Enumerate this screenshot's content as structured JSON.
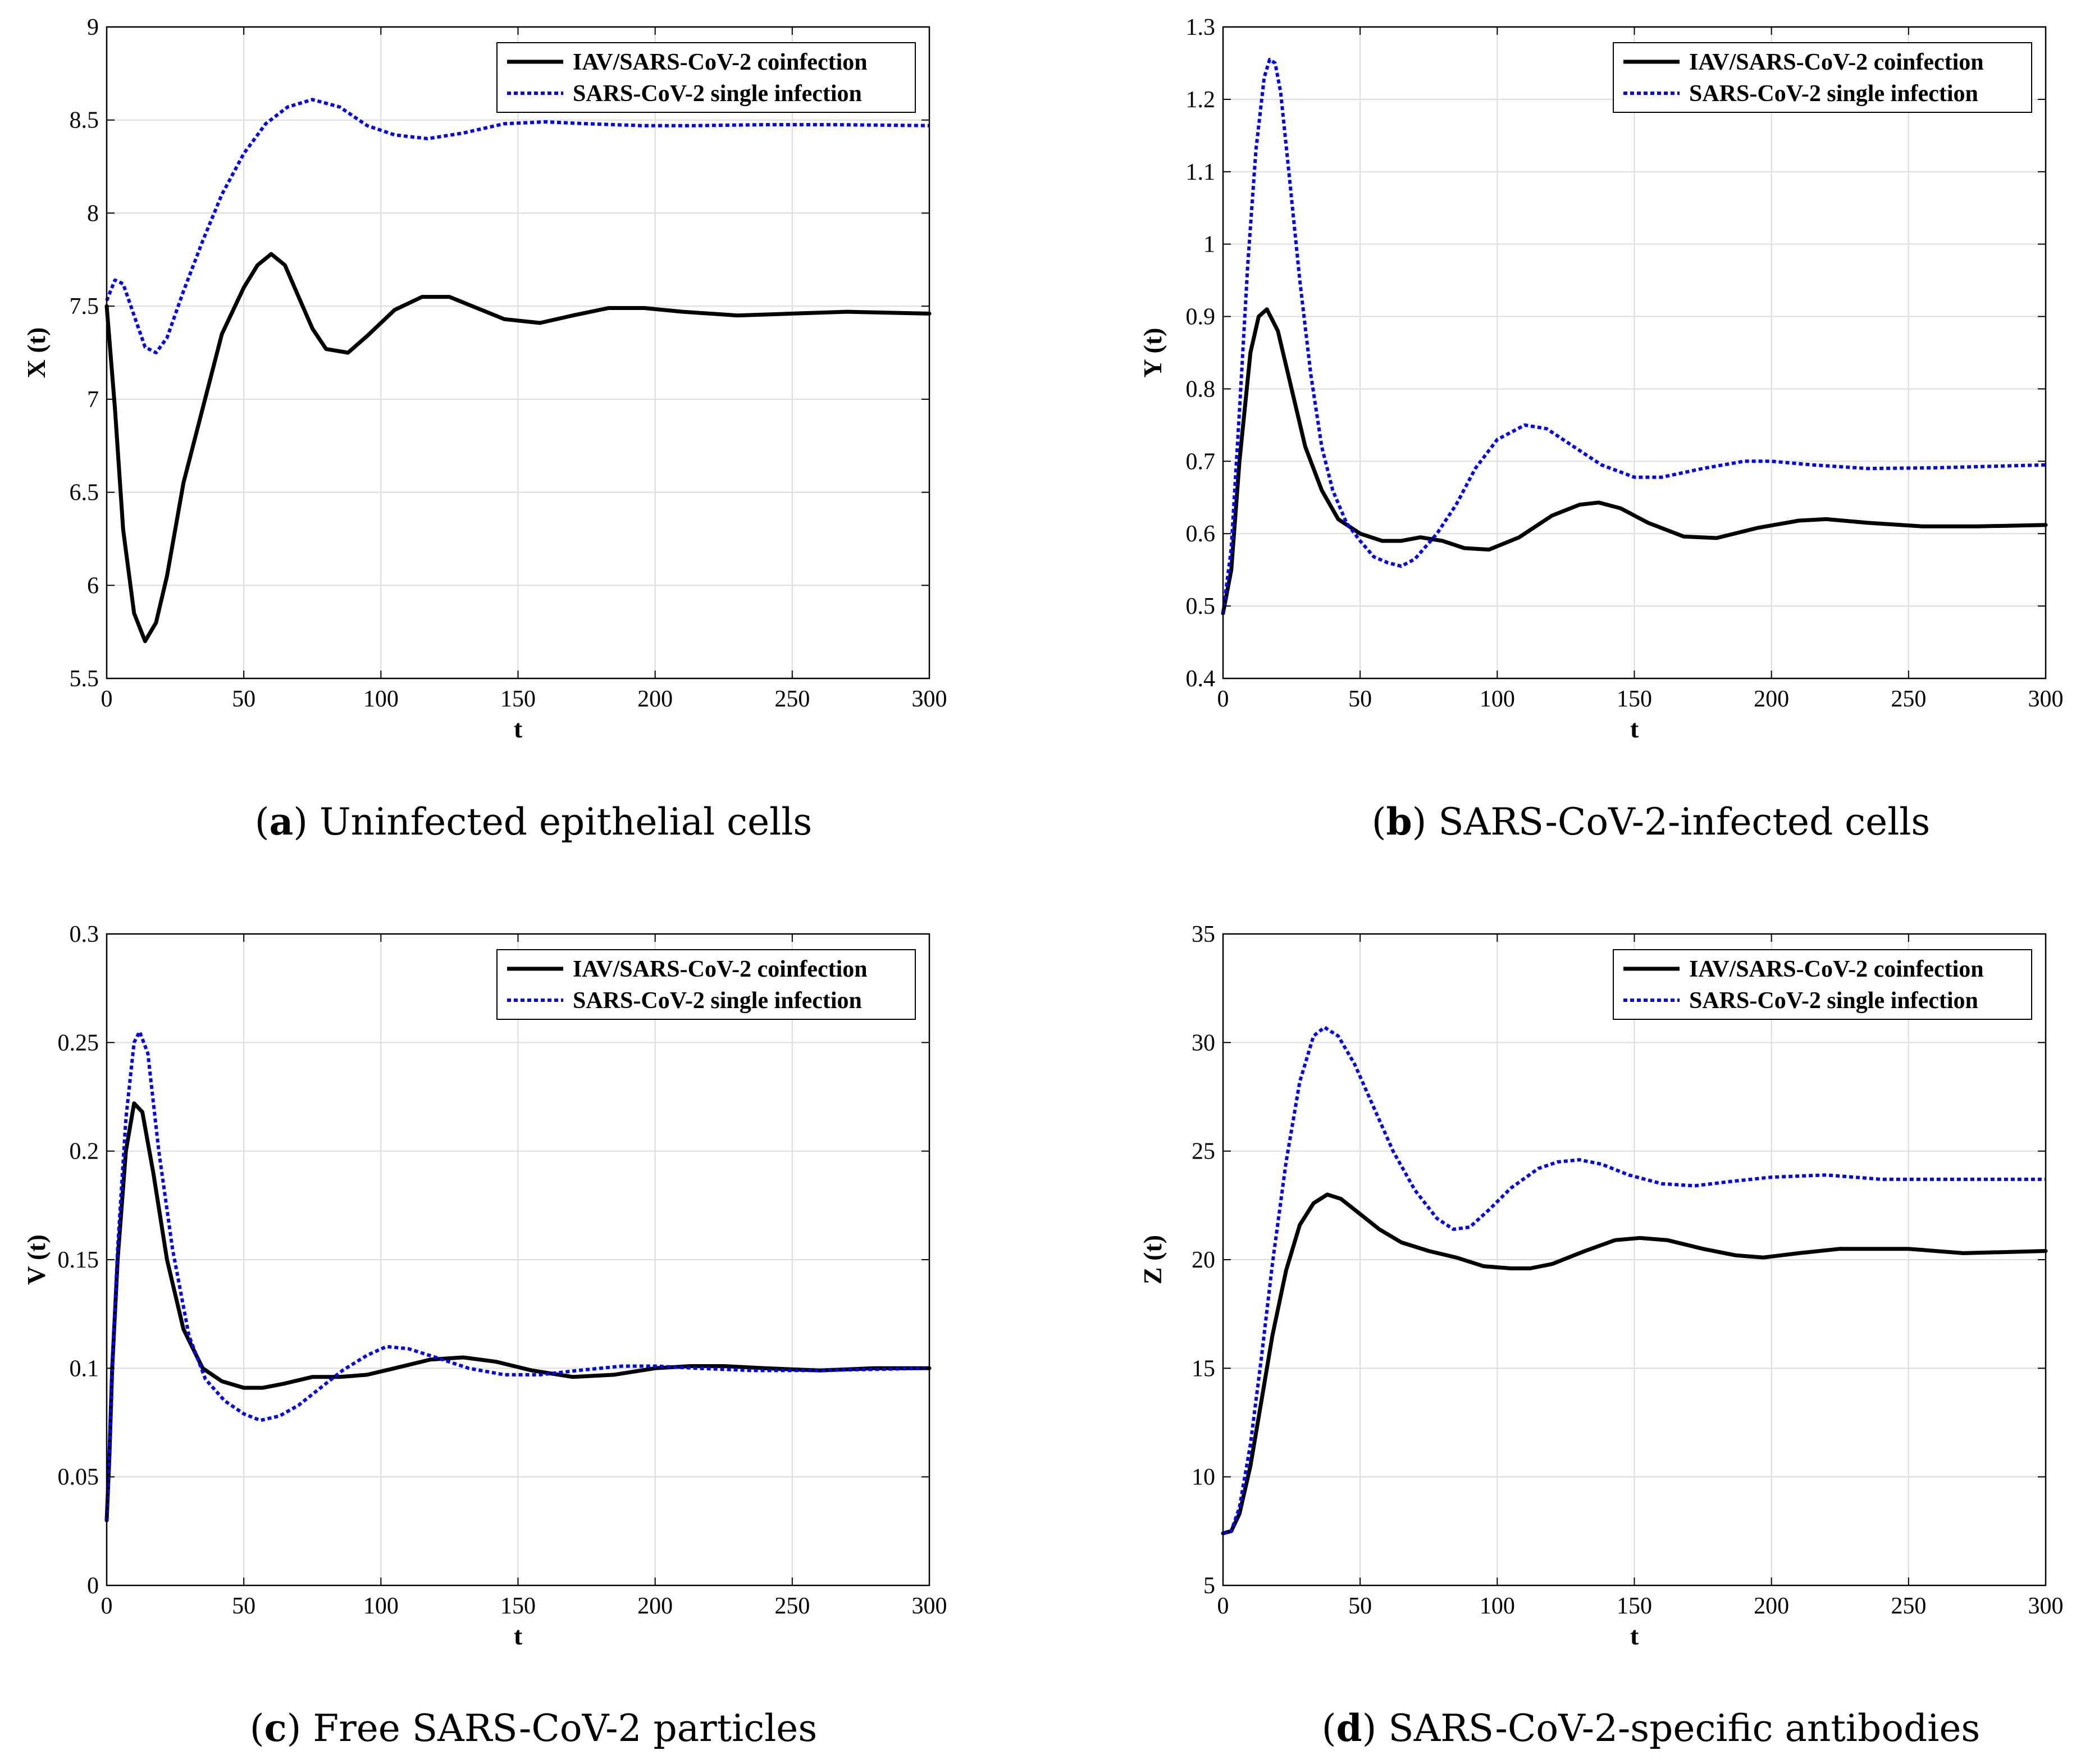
{
  "legend": {
    "coinfection": "IAV/SARS-CoV-2 coinfection",
    "single": "SARS-CoV-2 single infection"
  },
  "colors": {
    "coinfection": "#000000",
    "single": "#0000ff"
  },
  "chart_data": [
    {
      "type": "line",
      "panel_letter": "a",
      "caption": "Uninfected epithelial cells",
      "xlabel": "t",
      "ylabel": "X (t)",
      "xlim": [
        0,
        300
      ],
      "ylim": [
        5.5,
        9
      ],
      "xticks": [
        0,
        50,
        100,
        150,
        200,
        250,
        300
      ],
      "yticks": [
        5.5,
        6,
        6.5,
        7,
        7.5,
        8,
        8.5,
        9
      ],
      "grid": true,
      "legend_position": "top-right",
      "series": [
        {
          "name": "IAV/SARS-CoV-2 coinfection",
          "x": [
            0,
            3,
            6,
            10,
            14,
            18,
            22,
            28,
            35,
            42,
            50,
            55,
            60,
            65,
            70,
            75,
            80,
            88,
            95,
            105,
            115,
            125,
            135,
            145,
            158,
            170,
            183,
            196,
            210,
            230,
            250,
            270,
            300
          ],
          "y": [
            7.5,
            6.95,
            6.3,
            5.85,
            5.7,
            5.8,
            6.05,
            6.55,
            6.95,
            7.35,
            7.6,
            7.72,
            7.78,
            7.72,
            7.55,
            7.38,
            7.27,
            7.25,
            7.34,
            7.48,
            7.55,
            7.55,
            7.49,
            7.43,
            7.41,
            7.45,
            7.49,
            7.49,
            7.47,
            7.45,
            7.46,
            7.47,
            7.46
          ]
        },
        {
          "name": "SARS-CoV-2 single infection",
          "x": [
            0,
            3,
            6,
            10,
            14,
            18,
            22,
            28,
            35,
            42,
            50,
            58,
            66,
            75,
            85,
            95,
            105,
            117,
            130,
            145,
            160,
            175,
            195,
            215,
            240,
            265,
            300
          ],
          "y": [
            7.53,
            7.64,
            7.62,
            7.45,
            7.28,
            7.25,
            7.33,
            7.58,
            7.85,
            8.1,
            8.32,
            8.48,
            8.57,
            8.61,
            8.57,
            8.47,
            8.42,
            8.4,
            8.43,
            8.48,
            8.49,
            8.48,
            8.47,
            8.47,
            8.475,
            8.475,
            8.47
          ]
        }
      ]
    },
    {
      "type": "line",
      "panel_letter": "b",
      "caption": "SARS-CoV-2-infected cells",
      "xlabel": "t",
      "ylabel": "Y (t)",
      "xlim": [
        0,
        300
      ],
      "ylim": [
        0.4,
        1.3
      ],
      "xticks": [
        0,
        50,
        100,
        150,
        200,
        250,
        300
      ],
      "yticks": [
        0.4,
        0.5,
        0.6,
        0.7,
        0.8,
        0.9,
        1,
        1.1,
        1.2,
        1.3
      ],
      "grid": true,
      "legend_position": "top-right",
      "series": [
        {
          "name": "IAV/SARS-CoV-2 coinfection",
          "x": [
            0,
            3,
            6,
            10,
            13,
            16,
            20,
            25,
            30,
            36,
            42,
            50,
            58,
            65,
            72,
            80,
            88,
            97,
            108,
            120,
            130,
            137,
            145,
            155,
            168,
            180,
            195,
            210,
            220,
            235,
            255,
            275,
            300
          ],
          "y": [
            0.49,
            0.55,
            0.7,
            0.85,
            0.9,
            0.91,
            0.88,
            0.8,
            0.72,
            0.66,
            0.62,
            0.6,
            0.59,
            0.59,
            0.595,
            0.59,
            0.58,
            0.578,
            0.595,
            0.625,
            0.64,
            0.643,
            0.635,
            0.615,
            0.596,
            0.594,
            0.608,
            0.618,
            0.62,
            0.615,
            0.61,
            0.61,
            0.612
          ]
        },
        {
          "name": "SARS-CoV-2 single infection",
          "x": [
            0,
            3,
            6,
            9,
            12,
            15,
            17,
            19,
            21,
            24,
            28,
            32,
            36,
            40,
            45,
            50,
            55,
            60,
            65,
            70,
            78,
            85,
            92,
            100,
            110,
            118,
            128,
            138,
            150,
            160,
            175,
            190,
            200,
            215,
            235,
            260,
            300
          ],
          "y": [
            0.49,
            0.58,
            0.77,
            0.97,
            1.13,
            1.23,
            1.255,
            1.25,
            1.21,
            1.1,
            0.95,
            0.82,
            0.72,
            0.66,
            0.615,
            0.59,
            0.568,
            0.56,
            0.555,
            0.565,
            0.6,
            0.64,
            0.69,
            0.73,
            0.75,
            0.745,
            0.72,
            0.695,
            0.678,
            0.678,
            0.69,
            0.7,
            0.7,
            0.695,
            0.69,
            0.691,
            0.695
          ]
        }
      ]
    },
    {
      "type": "line",
      "panel_letter": "c",
      "caption": "Free SARS-CoV-2 particles",
      "xlabel": "t",
      "ylabel": "V (t)",
      "xlim": [
        0,
        300
      ],
      "ylim": [
        0,
        0.3
      ],
      "xticks": [
        0,
        50,
        100,
        150,
        200,
        250,
        300
      ],
      "yticks": [
        0,
        0.05,
        0.1,
        0.15,
        0.2,
        0.25,
        0.3
      ],
      "grid": true,
      "legend_position": "top-right",
      "series": [
        {
          "name": "IAV/SARS-CoV-2 coinfection",
          "x": [
            0,
            1,
            2,
            4,
            7,
            10,
            13,
            17,
            22,
            28,
            35,
            42,
            50,
            57,
            65,
            75,
            85,
            95,
            105,
            118,
            130,
            142,
            155,
            170,
            185,
            200,
            213,
            225,
            240,
            260,
            280,
            300
          ],
          "y": [
            0.03,
            0.06,
            0.1,
            0.15,
            0.2,
            0.222,
            0.218,
            0.19,
            0.15,
            0.118,
            0.1,
            0.094,
            0.091,
            0.091,
            0.093,
            0.096,
            0.096,
            0.097,
            0.1,
            0.104,
            0.105,
            0.103,
            0.099,
            0.096,
            0.097,
            0.1,
            0.101,
            0.101,
            0.1,
            0.099,
            0.1,
            0.1
          ]
        },
        {
          "name": "SARS-CoV-2 single infection",
          "x": [
            0,
            1,
            2,
            4,
            7,
            10,
            12,
            15,
            19,
            24,
            30,
            36,
            43,
            50,
            56,
            63,
            70,
            78,
            86,
            95,
            102,
            110,
            120,
            132,
            145,
            158,
            172,
            188,
            200,
            215,
            235,
            260,
            300
          ],
          "y": [
            0.03,
            0.06,
            0.1,
            0.155,
            0.215,
            0.25,
            0.255,
            0.245,
            0.2,
            0.155,
            0.115,
            0.095,
            0.085,
            0.079,
            0.076,
            0.078,
            0.083,
            0.091,
            0.099,
            0.106,
            0.11,
            0.109,
            0.105,
            0.1,
            0.097,
            0.097,
            0.099,
            0.101,
            0.101,
            0.1,
            0.099,
            0.099,
            0.1
          ]
        }
      ]
    },
    {
      "type": "line",
      "panel_letter": "d",
      "caption": "SARS-CoV-2-specific antibodies",
      "xlabel": "t",
      "ylabel": "Z (t)",
      "xlim": [
        0,
        300
      ],
      "ylim": [
        5,
        35
      ],
      "xticks": [
        0,
        50,
        100,
        150,
        200,
        250,
        300
      ],
      "yticks": [
        5,
        10,
        15,
        20,
        25,
        30,
        35
      ],
      "grid": true,
      "legend_position": "top-right",
      "series": [
        {
          "name": "IAV/SARS-CoV-2 coinfection",
          "x": [
            0,
            3,
            6,
            10,
            14,
            18,
            23,
            28,
            33,
            38,
            43,
            50,
            57,
            65,
            75,
            85,
            95,
            105,
            112,
            120,
            132,
            143,
            152,
            162,
            175,
            187,
            197,
            210,
            225,
            235,
            250,
            270,
            300
          ],
          "y": [
            7.4,
            7.5,
            8.3,
            10.5,
            13.5,
            16.5,
            19.5,
            21.6,
            22.6,
            23.0,
            22.8,
            22.1,
            21.4,
            20.8,
            20.4,
            20.1,
            19.7,
            19.6,
            19.6,
            19.8,
            20.4,
            20.9,
            21.0,
            20.9,
            20.5,
            20.2,
            20.1,
            20.3,
            20.5,
            20.5,
            20.5,
            20.3,
            20.4
          ]
        },
        {
          "name": "SARS-CoV-2 single infection",
          "x": [
            0,
            3,
            6,
            10,
            14,
            18,
            23,
            28,
            33,
            37,
            42,
            48,
            55,
            62,
            70,
            78,
            84,
            90,
            97,
            105,
            115,
            122,
            130,
            138,
            148,
            160,
            172,
            185,
            200,
            220,
            240,
            260,
            300
          ],
          "y": [
            7.4,
            7.5,
            8.6,
            11.5,
            15.5,
            19.8,
            24.5,
            28.2,
            30.3,
            30.7,
            30.3,
            29.0,
            27.0,
            25.0,
            23.2,
            21.9,
            21.4,
            21.5,
            22.3,
            23.3,
            24.2,
            24.5,
            24.6,
            24.4,
            23.9,
            23.5,
            23.4,
            23.6,
            23.8,
            23.9,
            23.7,
            23.7,
            23.7
          ]
        }
      ]
    }
  ]
}
